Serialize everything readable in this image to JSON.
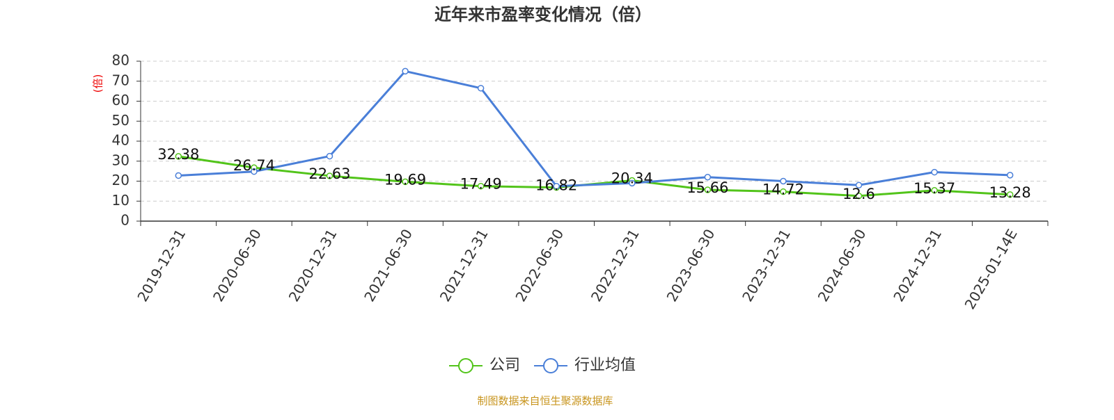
{
  "chart_data": {
    "type": "line",
    "title": "近年来市盈率变化情况（倍）",
    "y_label": "(倍)",
    "source": "制图数据来自恒生聚源数据库",
    "categories": [
      "2019-12-31",
      "2020-06-30",
      "2020-12-31",
      "2021-06-30",
      "2021-12-31",
      "2022-06-30",
      "2022-12-31",
      "2023-06-30",
      "2023-12-31",
      "2024-06-30",
      "2024-12-31",
      "2025-01-14E"
    ],
    "series": [
      {
        "name": "公司",
        "color": "#52c41a",
        "values": [
          32.38,
          26.74,
          22.63,
          19.69,
          17.49,
          16.82,
          20.34,
          15.66,
          14.72,
          12.6,
          15.37,
          13.28
        ],
        "data_labels": true
      },
      {
        "name": "行业均值",
        "color": "#4a7fd8",
        "values": [
          22.8,
          24.8,
          32.5,
          75,
          66.5,
          17.5,
          19,
          22,
          20,
          18,
          24.5,
          23
        ]
      }
    ],
    "ylim": [
      0,
      80
    ],
    "yticks": [
      0,
      10,
      20,
      30,
      40,
      50,
      60,
      70,
      80
    ],
    "grid": true
  }
}
